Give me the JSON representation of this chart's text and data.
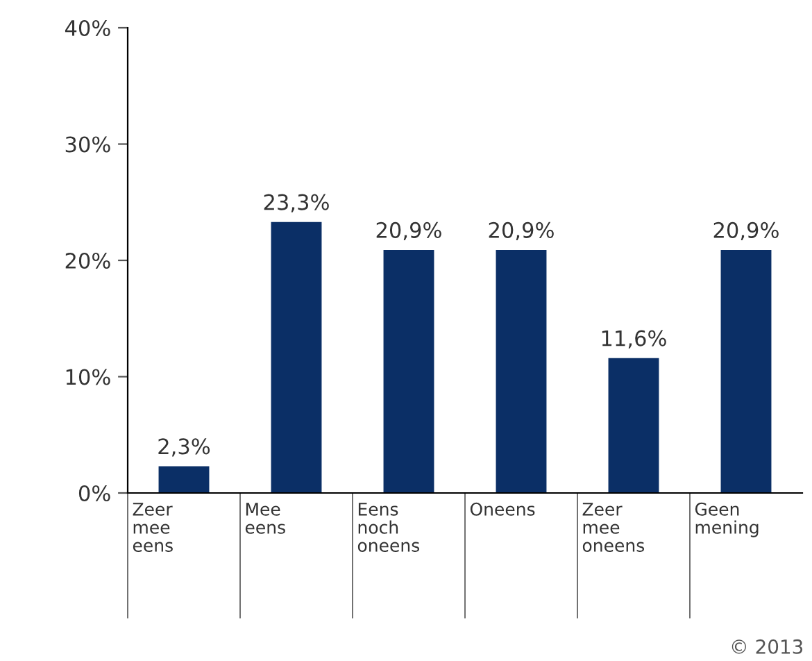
{
  "chart_data": {
    "type": "bar",
    "categories": [
      "Zeer\nmee\neens",
      "Mee\neens",
      "Eens\nnoch\noneens",
      "Oneens",
      "Zeer\nmee\noneens",
      "Geen\nmening"
    ],
    "values": [
      2.3,
      23.3,
      20.9,
      20.9,
      11.6,
      20.9
    ],
    "value_labels": [
      "2,3%",
      "23,3%",
      "20,9%",
      "20,9%",
      "11,6%",
      "20,9%"
    ],
    "color": "#0b2f66",
    "ylim": [
      0,
      40
    ],
    "yticks": [
      {
        "value": 0,
        "label": "0%"
      },
      {
        "value": 10,
        "label": "10%"
      },
      {
        "value": 20,
        "label": "20%"
      },
      {
        "value": 30,
        "label": "30%"
      },
      {
        "value": 40,
        "label": "40%"
      }
    ],
    "grid": false,
    "legend": false,
    "annotations": [
      "© 2013"
    ]
  }
}
